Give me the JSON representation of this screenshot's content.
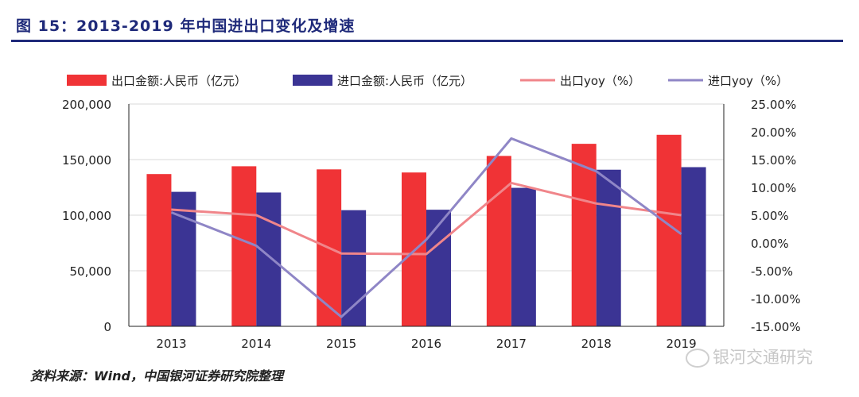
{
  "figure": {
    "title": "图 15：2013-2019 年中国进出口变化及增速",
    "source": "资料来源：Wind，中国银河证券研究院整理",
    "watermark": "银河交通研究"
  },
  "chart_data": {
    "type": "bar",
    "categories": [
      "2013",
      "2014",
      "2015",
      "2016",
      "2017",
      "2018",
      "2019"
    ],
    "series": [
      {
        "name": "出口金额:人民币（亿元）",
        "type": "bar",
        "axis": "left",
        "values": [
          137000,
          144000,
          141200,
          138400,
          153300,
          164200,
          172300
        ]
      },
      {
        "name": "进口金额:人民币（亿元）",
        "type": "bar",
        "axis": "left",
        "values": [
          121000,
          120400,
          104500,
          104900,
          124600,
          140900,
          143200
        ]
      },
      {
        "name": "出口yoy（%）",
        "type": "line",
        "axis": "right",
        "values": [
          6.0,
          5.0,
          -1.9,
          -2.0,
          10.8,
          7.1,
          5.0
        ]
      },
      {
        "name": "进口yoy（%）",
        "type": "line",
        "axis": "right",
        "values": [
          5.5,
          -0.5,
          -13.3,
          0.6,
          18.8,
          12.9,
          1.6
        ]
      }
    ],
    "ylim": [
      0,
      200000
    ],
    "y_ticks": [
      "0",
      "50,000",
      "100,000",
      "150,000",
      "200,000"
    ],
    "y2lim": [
      -15,
      25
    ],
    "y2_ticks": [
      "-15.00%",
      "-10.00%",
      "-5.00%",
      "0.00%",
      "5.00%",
      "10.00%",
      "15.00%",
      "20.00%",
      "25.00%"
    ],
    "grid": true,
    "legend_position": "top",
    "colors": {
      "export_bar": "#f03336",
      "import_bar": "#3b3494",
      "export_line": "#f0858a",
      "import_line": "#8f86c6"
    }
  }
}
